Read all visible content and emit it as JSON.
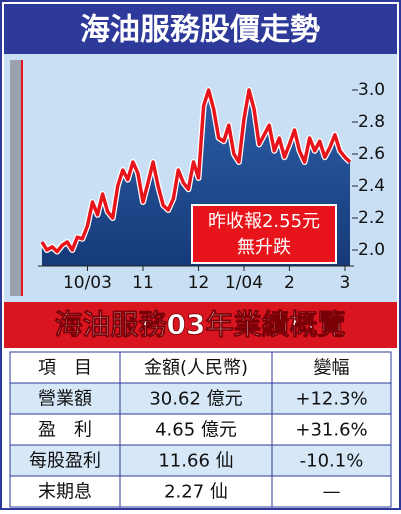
{
  "chart_data": {
    "type": "line",
    "title": "海油服務股價走勢",
    "categories": [
      null,
      null,
      null,
      null,
      null,
      null,
      null,
      null,
      null,
      "10/03",
      null,
      null,
      null,
      null,
      null,
      null,
      null,
      null,
      null,
      null,
      "11",
      null,
      null,
      null,
      null,
      null,
      null,
      null,
      null,
      null,
      null,
      "12",
      null,
      null,
      null,
      null,
      null,
      null,
      null,
      null,
      "1/04",
      null,
      null,
      null,
      null,
      null,
      null,
      null,
      null,
      "2",
      null,
      null,
      null,
      null,
      null,
      null,
      null,
      null,
      null,
      null,
      "3",
      null
    ],
    "values": [
      2.05,
      2.0,
      2.02,
      1.99,
      2.03,
      2.05,
      2.0,
      2.08,
      2.07,
      2.15,
      2.3,
      2.22,
      2.35,
      2.24,
      2.2,
      2.4,
      2.5,
      2.44,
      2.55,
      2.48,
      2.3,
      2.42,
      2.55,
      2.4,
      2.28,
      2.25,
      2.32,
      2.5,
      2.42,
      2.38,
      2.55,
      2.45,
      2.9,
      3.0,
      2.88,
      2.7,
      2.68,
      2.78,
      2.6,
      2.55,
      2.82,
      3.0,
      2.88,
      2.66,
      2.72,
      2.78,
      2.62,
      2.7,
      2.58,
      2.66,
      2.75,
      2.62,
      2.55,
      2.7,
      2.62,
      2.68,
      2.58,
      2.64,
      2.72,
      2.62,
      2.58,
      2.55
    ],
    "color": "#e8141c",
    "ylim": [
      1.9,
      3.1
    ],
    "yticks": [
      {
        "value": 2,
        "label": "2.0"
      },
      2.2,
      2.4,
      2.6,
      2.8,
      {
        "value": 3,
        "label": "3.0"
      }
    ],
    "annotations": [
      "昨收報2.55元",
      "無升跌"
    ]
  },
  "table": {
    "title": "海油服務03年業績概覽",
    "header": [
      "項　目",
      "金額(人民幣)",
      "變幅"
    ],
    "rows": [
      [
        "營業額",
        "30.62 億元",
        "+12.3%"
      ],
      [
        "盈　利",
        "4.65 億元",
        "+31.6%"
      ],
      [
        "每股盈利",
        "11.66 仙",
        "-10.1%"
      ],
      [
        "末期息",
        "2.27 仙",
        "—"
      ]
    ]
  }
}
